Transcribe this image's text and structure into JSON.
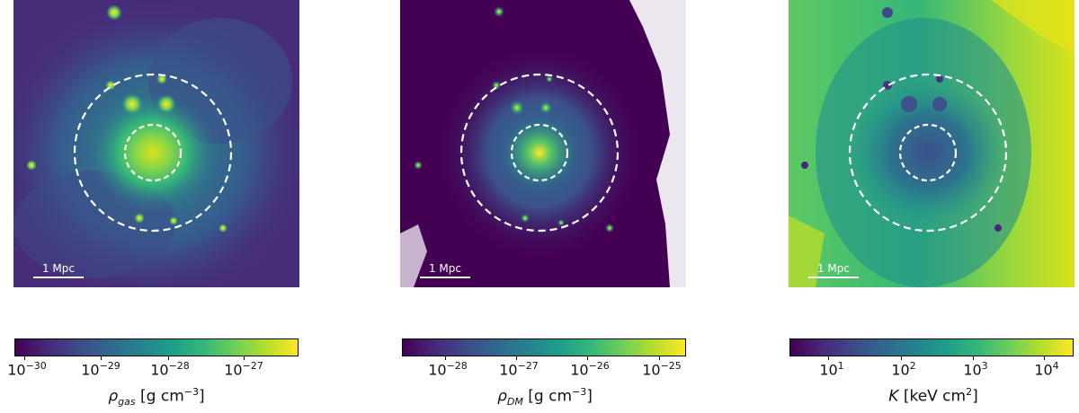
{
  "panels": [
    {
      "id": "gas",
      "scale_label": "1 Mpc"
    },
    {
      "id": "dm",
      "scale_label": "1 Mpc"
    },
    {
      "id": "entropy",
      "scale_label": "1 Mpc"
    }
  ],
  "colorbars": [
    {
      "label_symbol": "ρ",
      "label_sub": "gas",
      "label_units": "[g cm",
      "label_exp": "−3",
      "label_close": "]",
      "ticks": [
        {
          "base": "10",
          "exp": "−30"
        },
        {
          "base": "10",
          "exp": "−29"
        },
        {
          "base": "10",
          "exp": "−28"
        },
        {
          "base": "10",
          "exp": "−27"
        }
      ]
    },
    {
      "label_symbol": "ρ",
      "label_sub": "DM",
      "label_units": "[g cm",
      "label_exp": "−3",
      "label_close": "]",
      "ticks": [
        {
          "base": "10",
          "exp": "−28"
        },
        {
          "base": "10",
          "exp": "−27"
        },
        {
          "base": "10",
          "exp": "−26"
        },
        {
          "base": "10",
          "exp": "−25"
        }
      ]
    },
    {
      "label_symbol": "K",
      "label_sub": "",
      "label_units": "[keV cm",
      "label_exp": "2",
      "label_close": "]",
      "ticks": [
        {
          "base": "10",
          "exp": "1"
        },
        {
          "base": "10",
          "exp": "2"
        },
        {
          "base": "10",
          "exp": "3"
        },
        {
          "base": "10",
          "exp": "4"
        }
      ]
    }
  ],
  "colors": {
    "viridis_dark": "#440154",
    "viridis_mid": "#21918c",
    "viridis_light": "#fde725",
    "circle": "#ffffff"
  }
}
